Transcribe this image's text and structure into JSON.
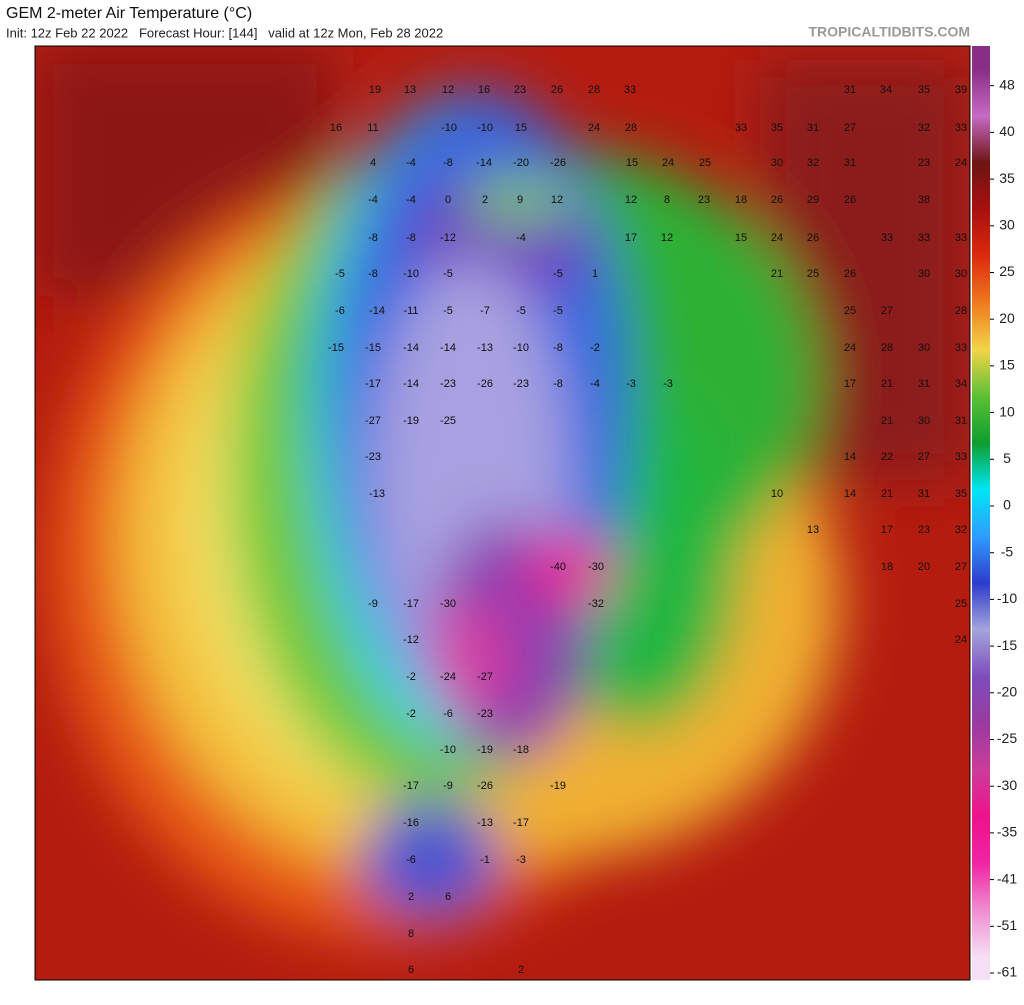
{
  "header": {
    "title": "GEM 2-meter Air Temperature (°C)",
    "subtitle": "Init: 12z Feb 22 2022   Forecast Hour: [144]   valid at 12z Mon, Feb 28 2022",
    "source": "TROPICALTIDBITS.COM"
  },
  "colorbar": {
    "ticks": [
      48,
      40,
      35,
      30,
      25,
      20,
      15,
      10,
      5,
      0,
      -5,
      -10,
      -15,
      -20,
      -25,
      -30,
      -35,
      -41,
      -51,
      -61
    ],
    "colors": [
      "#8a2d86",
      "#c76ac4",
      "#6e1414",
      "#a8100e",
      "#dc2a0c",
      "#ef7a1e",
      "#f3d448",
      "#5cc034",
      "#0e9e2e",
      "#00e6f4",
      "#2f9cff",
      "#2c3ccc",
      "#a4a4dc",
      "#7e4cbc",
      "#9a3aa0",
      "#cc3c9c",
      "#ee128c",
      "#f024a4",
      "#f08cd0",
      "#f6def6"
    ]
  },
  "map": {
    "label_rows": [
      [
        19,
        13,
        12,
        16,
        23,
        26,
        28,
        33,
        31,
        34,
        35,
        39
      ],
      [
        16,
        11,
        -10,
        -10,
        15,
        24,
        28,
        33,
        35,
        31,
        27,
        32,
        33
      ],
      [
        4,
        -4,
        -8,
        -14,
        -20,
        -26,
        15,
        24,
        25,
        30,
        32,
        31,
        23,
        24
      ],
      [
        -4,
        -4,
        0,
        2,
        9,
        12,
        12,
        8,
        23,
        18,
        26,
        29,
        26,
        38
      ],
      [
        -8,
        -8,
        -12,
        -4,
        17,
        12,
        15,
        24,
        26,
        33,
        33,
        33
      ],
      [
        -5,
        -8,
        -10,
        -5,
        -5,
        1,
        21,
        25,
        26,
        30,
        30
      ],
      [
        -6,
        -14,
        -11,
        -5,
        -7,
        -5,
        -5,
        25,
        27,
        28
      ],
      [
        -15,
        -15,
        -14,
        -14,
        -13,
        -10,
        -8,
        -2,
        24,
        28,
        30,
        33
      ],
      [
        -17,
        -14,
        -23,
        -26,
        -23,
        -8,
        -4,
        -3,
        -3,
        17,
        21,
        31,
        34
      ],
      [
        -27,
        -19,
        -25,
        21,
        30,
        31
      ],
      [
        -23,
        14,
        22,
        27,
        33
      ],
      [
        -13,
        10,
        14,
        21,
        31,
        35
      ],
      [
        13,
        17,
        23,
        32
      ],
      [
        -40,
        -30,
        18,
        20,
        27
      ],
      [
        -9,
        -17,
        -30,
        -32,
        25
      ],
      [
        -12,
        24
      ],
      [
        -2,
        -24,
        -27
      ],
      [
        -2,
        -6,
        -23
      ],
      [
        -10,
        -19,
        -18
      ],
      [
        -17,
        -9,
        -26,
        -19
      ],
      [
        -16,
        -13,
        -17
      ],
      [
        -6,
        -1,
        -3
      ],
      [
        2,
        6
      ],
      [
        8
      ],
      [
        6,
        2
      ]
    ]
  }
}
